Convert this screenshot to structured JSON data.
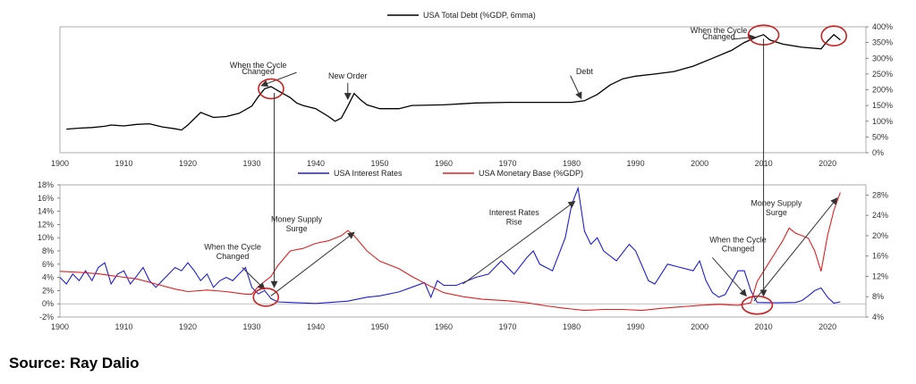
{
  "source": "Source: Ray Dalio",
  "chart_data": [
    {
      "type": "line",
      "title": "",
      "legend": {
        "label": "USA Total Debt (%GDP, 6mma)",
        "placement": "top-center",
        "color": "#000000"
      },
      "xlim": [
        1900,
        2026
      ],
      "ylim": [
        0,
        400
      ],
      "x_ticks": [
        "1900",
        "1910",
        "1920",
        "1930",
        "1940",
        "1950",
        "1960",
        "1970",
        "1980",
        "1990",
        "2000",
        "2010",
        "2020"
      ],
      "y_ticks": [
        "0%",
        "50%",
        "100%",
        "150%",
        "200%",
        "250%",
        "300%",
        "350%",
        "400%"
      ],
      "y_axis_side": "right",
      "grid": false,
      "series": [
        {
          "name": "USA Total Debt (%GDP, 6mma)",
          "color": "#000000",
          "points": [
            [
              1901,
              75
            ],
            [
              1903,
              78
            ],
            [
              1905,
              80
            ],
            [
              1907,
              84
            ],
            [
              1908,
              88
            ],
            [
              1910,
              85
            ],
            [
              1912,
              90
            ],
            [
              1914,
              92
            ],
            [
              1916,
              82
            ],
            [
              1918,
              76
            ],
            [
              1919,
              72
            ],
            [
              1920,
              88
            ],
            [
              1922,
              128
            ],
            [
              1924,
              112
            ],
            [
              1926,
              115
            ],
            [
              1928,
              125
            ],
            [
              1930,
              148
            ],
            [
              1931,
              178
            ],
            [
              1932,
              203
            ],
            [
              1933,
              210
            ],
            [
              1934,
              198
            ],
            [
              1936,
              175
            ],
            [
              1937,
              158
            ],
            [
              1938,
              150
            ],
            [
              1940,
              140
            ],
            [
              1942,
              115
            ],
            [
              1943,
              100
            ],
            [
              1944,
              110
            ],
            [
              1945,
              148
            ],
            [
              1946,
              188
            ],
            [
              1947,
              168
            ],
            [
              1948,
              152
            ],
            [
              1950,
              140
            ],
            [
              1953,
              140
            ],
            [
              1955,
              150
            ],
            [
              1960,
              152
            ],
            [
              1965,
              158
            ],
            [
              1970,
              160
            ],
            [
              1975,
              160
            ],
            [
              1980,
              160
            ],
            [
              1982,
              165
            ],
            [
              1984,
              185
            ],
            [
              1986,
              215
            ],
            [
              1988,
              235
            ],
            [
              1990,
              243
            ],
            [
              1993,
              250
            ],
            [
              1996,
              258
            ],
            [
              1999,
              275
            ],
            [
              2002,
              300
            ],
            [
              2005,
              325
            ],
            [
              2007,
              350
            ],
            [
              2009,
              368
            ],
            [
              2010,
              375
            ],
            [
              2011,
              358
            ],
            [
              2013,
              345
            ],
            [
              2016,
              335
            ],
            [
              2019,
              330
            ],
            [
              2020,
              355
            ],
            [
              2021,
              375
            ],
            [
              2022,
              358
            ]
          ]
        }
      ],
      "annotations": [
        {
          "text": "When the Cycle",
          "x": 1931,
          "y": 270
        },
        {
          "text": "Changed",
          "x": 1931,
          "y": 250
        },
        {
          "text": "New Order",
          "x": 1945,
          "y": 235
        },
        {
          "text": "Debt",
          "x": 1982,
          "y": 250
        },
        {
          "text": "When the Cycle",
          "x": 2003,
          "y": 380
        },
        {
          "text": "Changed",
          "x": 2003,
          "y": 360
        }
      ]
    },
    {
      "type": "line",
      "title": "",
      "legend": {
        "placement": "top-center",
        "entries": [
          {
            "label": "USA Interest Rates",
            "color": "#1f1fd0"
          },
          {
            "label": "USA Monetary Base (%GDP)",
            "color": "#e02020"
          }
        ]
      },
      "xlim": [
        1900,
        2026
      ],
      "x_ticks": [
        "1900",
        "1910",
        "1920",
        "1930",
        "1940",
        "1950",
        "1960",
        "1970",
        "1980",
        "1990",
        "2000",
        "2010",
        "2020"
      ],
      "y_left": {
        "lim": [
          -2,
          18
        ],
        "ticks": [
          "-2%",
          "0%",
          "2%",
          "4%",
          "6%",
          "8%",
          "10%",
          "12%",
          "14%",
          "16%",
          "18%"
        ]
      },
      "y_right": {
        "lim": [
          4,
          30
        ],
        "ticks": [
          "4%",
          "8%",
          "12%",
          "16%",
          "20%",
          "24%",
          "28%"
        ]
      },
      "grid": false,
      "series": [
        {
          "name": "USA Interest Rates",
          "axis": "left",
          "color": "#1f1fd0",
          "points": [
            [
              1900,
              4
            ],
            [
              1901,
              3
            ],
            [
              1902,
              4.5
            ],
            [
              1903,
              3.5
            ],
            [
              1904,
              5
            ],
            [
              1905,
              3.5
            ],
            [
              1906,
              5.5
            ],
            [
              1907,
              6.2
            ],
            [
              1908,
              3
            ],
            [
              1909,
              4.5
            ],
            [
              1910,
              5
            ],
            [
              1911,
              3
            ],
            [
              1912,
              4.2
            ],
            [
              1913,
              5.5
            ],
            [
              1914,
              3.5
            ],
            [
              1915,
              2.5
            ],
            [
              1916,
              3.5
            ],
            [
              1917,
              4.5
            ],
            [
              1918,
              5.5
            ],
            [
              1919,
              5
            ],
            [
              1920,
              6.2
            ],
            [
              1921,
              5
            ],
            [
              1922,
              3.5
            ],
            [
              1923,
              4.5
            ],
            [
              1924,
              2.5
            ],
            [
              1925,
              3.5
            ],
            [
              1926,
              4
            ],
            [
              1927,
              3.5
            ],
            [
              1928,
              4.5
            ],
            [
              1929,
              5.5
            ],
            [
              1930,
              2.5
            ],
            [
              1931,
              1.5
            ],
            [
              1932,
              2
            ],
            [
              1933,
              0.8
            ],
            [
              1934,
              0.3
            ],
            [
              1936,
              0.2
            ],
            [
              1940,
              0.05
            ],
            [
              1945,
              0.4
            ],
            [
              1948,
              1
            ],
            [
              1950,
              1.2
            ],
            [
              1953,
              1.8
            ],
            [
              1955,
              2.5
            ],
            [
              1957,
              3.2
            ],
            [
              1958,
              1
            ],
            [
              1959,
              3.5
            ],
            [
              1960,
              2.8
            ],
            [
              1962,
              2.8
            ],
            [
              1965,
              4
            ],
            [
              1967,
              4.5
            ],
            [
              1969,
              6.5
            ],
            [
              1971,
              4.5
            ],
            [
              1973,
              7
            ],
            [
              1974,
              8
            ],
            [
              1975,
              6
            ],
            [
              1977,
              5
            ],
            [
              1978,
              7.5
            ],
            [
              1979,
              10
            ],
            [
              1980,
              15
            ],
            [
              1981,
              17.5
            ],
            [
              1982,
              11
            ],
            [
              1983,
              9
            ],
            [
              1984,
              10
            ],
            [
              1985,
              8
            ],
            [
              1987,
              6.5
            ],
            [
              1989,
              9
            ],
            [
              1990,
              8
            ],
            [
              1992,
              3.5
            ],
            [
              1993,
              3
            ],
            [
              1995,
              6
            ],
            [
              1997,
              5.5
            ],
            [
              1999,
              5
            ],
            [
              2000,
              6.5
            ],
            [
              2001,
              3.5
            ],
            [
              2002,
              1.7
            ],
            [
              2003,
              1
            ],
            [
              2004,
              1.4
            ],
            [
              2005,
              3.2
            ],
            [
              2006,
              5
            ],
            [
              2007,
              5
            ],
            [
              2008,
              2
            ],
            [
              2009,
              0.2
            ],
            [
              2012,
              0.15
            ],
            [
              2015,
              0.2
            ],
            [
              2016,
              0.5
            ],
            [
              2017,
              1.2
            ],
            [
              2018,
              2
            ],
            [
              2019,
              2.4
            ],
            [
              2020,
              1
            ],
            [
              2021,
              0.1
            ],
            [
              2022,
              0.3
            ]
          ]
        },
        {
          "name": "USA Monetary Base (%GDP)",
          "axis": "right",
          "color": "#e02020",
          "points": [
            [
              1900,
              13
            ],
            [
              1903,
              12.8
            ],
            [
              1906,
              12.5
            ],
            [
              1909,
              12
            ],
            [
              1912,
              11.5
            ],
            [
              1915,
              10.5
            ],
            [
              1918,
              9.5
            ],
            [
              1920,
              9
            ],
            [
              1923,
              9.3
            ],
            [
              1926,
              9
            ],
            [
              1929,
              8.5
            ],
            [
              1930,
              8.5
            ],
            [
              1931,
              10
            ],
            [
              1932,
              11
            ],
            [
              1933,
              12
            ],
            [
              1934,
              14
            ],
            [
              1936,
              17
            ],
            [
              1938,
              17.5
            ],
            [
              1940,
              18.5
            ],
            [
              1942,
              19
            ],
            [
              1944,
              20
            ],
            [
              1945,
              21
            ],
            [
              1946,
              20
            ],
            [
              1948,
              17
            ],
            [
              1950,
              15
            ],
            [
              1953,
              13.5
            ],
            [
              1955,
              12
            ],
            [
              1958,
              10
            ],
            [
              1960,
              8.8
            ],
            [
              1963,
              8
            ],
            [
              1966,
              7.5
            ],
            [
              1970,
              7.2
            ],
            [
              1973,
              6.8
            ],
            [
              1976,
              6.2
            ],
            [
              1979,
              5.7
            ],
            [
              1982,
              5.3
            ],
            [
              1985,
              5.5
            ],
            [
              1988,
              5.5
            ],
            [
              1991,
              5.3
            ],
            [
              1994,
              5.7
            ],
            [
              1997,
              6
            ],
            [
              2000,
              6.3
            ],
            [
              2003,
              6.5
            ],
            [
              2006,
              6.3
            ],
            [
              2008,
              6.8
            ],
            [
              2009,
              11
            ],
            [
              2010,
              13
            ],
            [
              2011,
              15
            ],
            [
              2012,
              17
            ],
            [
              2013,
              19
            ],
            [
              2014,
              21.5
            ],
            [
              2015,
              20.5
            ],
            [
              2016,
              20
            ],
            [
              2017,
              19.5
            ],
            [
              2018,
              17
            ],
            [
              2019,
              13
            ],
            [
              2020,
              20
            ],
            [
              2021,
              25
            ],
            [
              2022,
              28.5
            ]
          ]
        }
      ],
      "annotations": [
        {
          "text": "When the Cycle",
          "x": 1927,
          "y": 8.2
        },
        {
          "text": "Changed",
          "x": 1927,
          "y": 6.8
        },
        {
          "text": "Money Supply",
          "x": 1937,
          "y": 12.4
        },
        {
          "text": "Surge",
          "x": 1937,
          "y": 11
        },
        {
          "text": "Interest Rates",
          "x": 1971,
          "y": 13.4
        },
        {
          "text": "Rise",
          "x": 1971,
          "y": 12
        },
        {
          "text": "When the Cycle",
          "x": 2006,
          "y": 9.3
        },
        {
          "text": "Changed",
          "x": 2006,
          "y": 7.9
        },
        {
          "text": "Money Supply",
          "x": 2012,
          "y": 14.8
        },
        {
          "text": "Surge",
          "x": 2012,
          "y": 13.4
        }
      ]
    }
  ]
}
